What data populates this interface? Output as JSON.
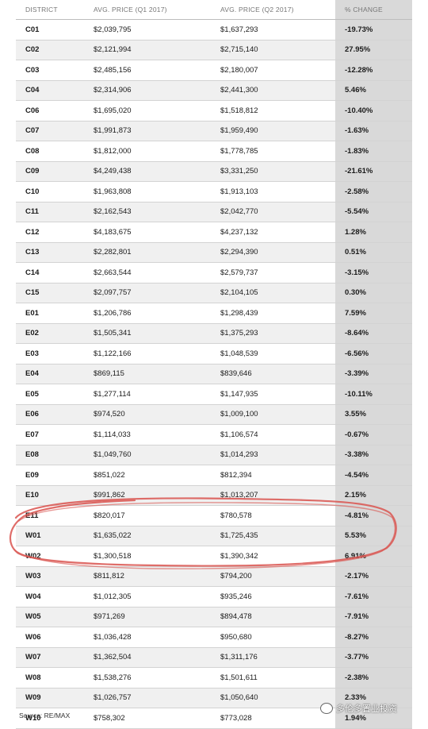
{
  "table": {
    "headers": [
      "DISTRICT",
      "AVG. PRICE (Q1 2017)",
      "AVG. PRICE (Q2 2017)",
      "% CHANGE"
    ],
    "rows": [
      [
        "C01",
        "$2,039,795",
        "$1,637,293",
        "-19.73%"
      ],
      [
        "C02",
        "$2,121,994",
        "$2,715,140",
        "27.95%"
      ],
      [
        "C03",
        "$2,485,156",
        "$2,180,007",
        "-12.28%"
      ],
      [
        "C04",
        "$2,314,906",
        "$2,441,300",
        "5.46%"
      ],
      [
        "C06",
        "$1,695,020",
        "$1,518,812",
        "-10.40%"
      ],
      [
        "C07",
        "$1,991,873",
        "$1,959,490",
        "-1.63%"
      ],
      [
        "C08",
        "$1,812,000",
        "$1,778,785",
        "-1.83%"
      ],
      [
        "C09",
        "$4,249,438",
        "$3,331,250",
        "-21.61%"
      ],
      [
        "C10",
        "$1,963,808",
        "$1,913,103",
        "-2.58%"
      ],
      [
        "C11",
        "$2,162,543",
        "$2,042,770",
        "-5.54%"
      ],
      [
        "C12",
        "$4,183,675",
        "$4,237,132",
        "1.28%"
      ],
      [
        "C13",
        "$2,282,801",
        "$2,294,390",
        "0.51%"
      ],
      [
        "C14",
        "$2,663,544",
        "$2,579,737",
        "-3.15%"
      ],
      [
        "C15",
        "$2,097,757",
        "$2,104,105",
        "0.30%"
      ],
      [
        "E01",
        "$1,206,786",
        "$1,298,439",
        "7.59%"
      ],
      [
        "E02",
        "$1,505,341",
        "$1,375,293",
        "-8.64%"
      ],
      [
        "E03",
        "$1,122,166",
        "$1,048,539",
        "-6.56%"
      ],
      [
        "E04",
        "$869,115",
        "$839,646",
        "-3.39%"
      ],
      [
        "E05",
        "$1,277,114",
        "$1,147,935",
        "-10.11%"
      ],
      [
        "E06",
        "$974,520",
        "$1,009,100",
        "3.55%"
      ],
      [
        "E07",
        "$1,114,033",
        "$1,106,574",
        "-0.67%"
      ],
      [
        "E08",
        "$1,049,760",
        "$1,014,293",
        "-3.38%"
      ],
      [
        "E09",
        "$851,022",
        "$812,394",
        "-4.54%"
      ],
      [
        "E10",
        "$991,862",
        "$1,013,207",
        "2.15%"
      ],
      [
        "E11",
        "$820,017",
        "$780,578",
        "-4.81%"
      ],
      [
        "W01",
        "$1,635,022",
        "$1,725,435",
        "5.53%"
      ],
      [
        "W02",
        "$1,300,518",
        "$1,390,342",
        "6.91%"
      ],
      [
        "W03",
        "$811,812",
        "$794,200",
        "-2.17%"
      ],
      [
        "W04",
        "$1,012,305",
        "$935,246",
        "-7.61%"
      ],
      [
        "W05",
        "$971,269",
        "$894,478",
        "-7.91%"
      ],
      [
        "W06",
        "$1,036,428",
        "$950,680",
        "-8.27%"
      ],
      [
        "W07",
        "$1,362,504",
        "$1,311,176",
        "-3.77%"
      ],
      [
        "W08",
        "$1,538,276",
        "$1,501,611",
        "-2.38%"
      ],
      [
        "W09",
        "$1,026,757",
        "$1,050,640",
        "2.33%"
      ],
      [
        "W10",
        "$758,302",
        "$773,028",
        "1.94%"
      ]
    ]
  },
  "source": "Source: RE/MAX",
  "watermark": "多伦多置业投资",
  "highlight": {
    "color": "#d9534f",
    "rows": [
      "W01",
      "W02"
    ]
  }
}
